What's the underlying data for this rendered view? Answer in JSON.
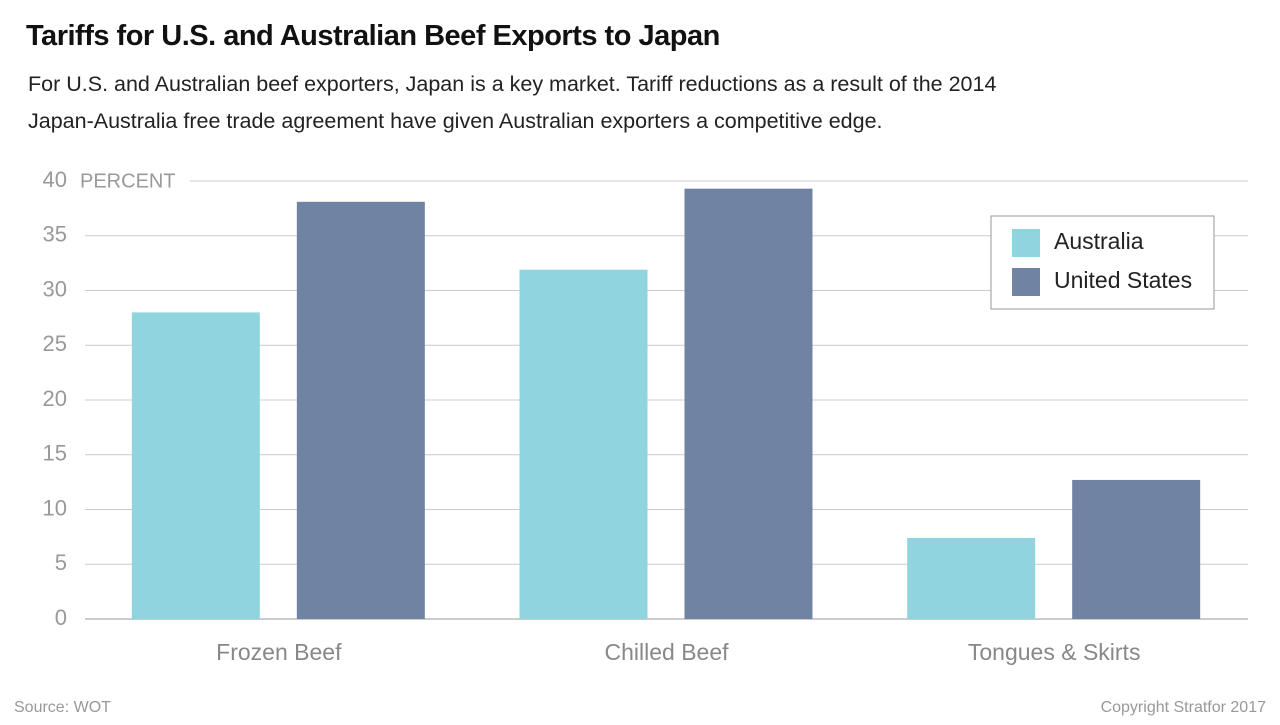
{
  "chart_data": {
    "type": "bar",
    "title": "Tariffs for U.S. and Australian Beef Exports to Japan",
    "subtitle": "For U.S. and Australian beef exporters, Japan is a key market. Tariff reductions as a result of the 2014 Japan-Australia free trade agreement have given Australian exporters a competitive edge.",
    "y_label": "PERCENT",
    "categories": [
      "Frozen Beef",
      "Chilled Beef",
      "Tongues & Skirts"
    ],
    "series": [
      {
        "name": "Australia",
        "color": "#8fd4df",
        "values": [
          28.0,
          31.9,
          7.4
        ]
      },
      {
        "name": "United States",
        "color": "#7083a3",
        "values": [
          38.1,
          39.3,
          12.7
        ]
      }
    ],
    "ylim": [
      0,
      40
    ],
    "yticks": [
      0,
      5,
      10,
      15,
      20,
      25,
      30,
      35,
      40
    ],
    "grid": true,
    "legend": "top-right",
    "source": "Source: WOT",
    "copyright": "Copyright Stratfor 2017"
  }
}
